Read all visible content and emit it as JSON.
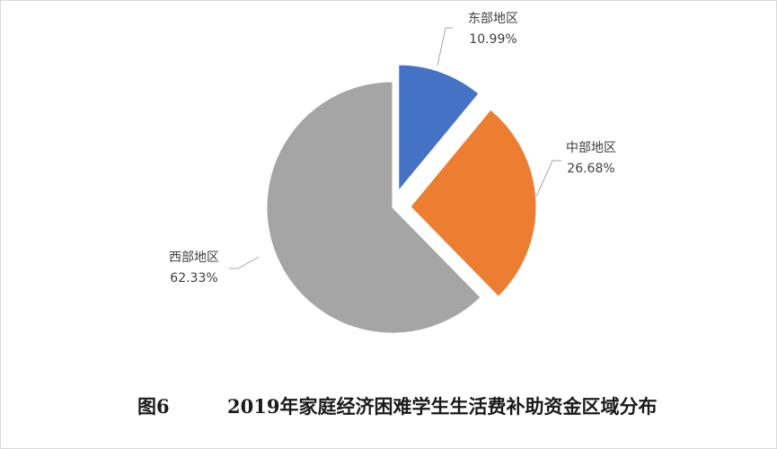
{
  "figure": {
    "number": "图6",
    "title": "2019年家庭经济困难学生生活费补助资金区域分布"
  },
  "chart_data": {
    "type": "pie",
    "title": "",
    "exploded": true,
    "start": "12 o'clock, clockwise",
    "slices": [
      {
        "name": "东部地区",
        "value": 10.99,
        "label": "10.99%",
        "color": "#4472c4"
      },
      {
        "name": "中部地区",
        "value": 26.68,
        "label": "26.68%",
        "color": "#ed7d31"
      },
      {
        "name": "西部地区",
        "value": 62.33,
        "label": "62.33%",
        "color": "#a5a5a5"
      }
    ]
  }
}
